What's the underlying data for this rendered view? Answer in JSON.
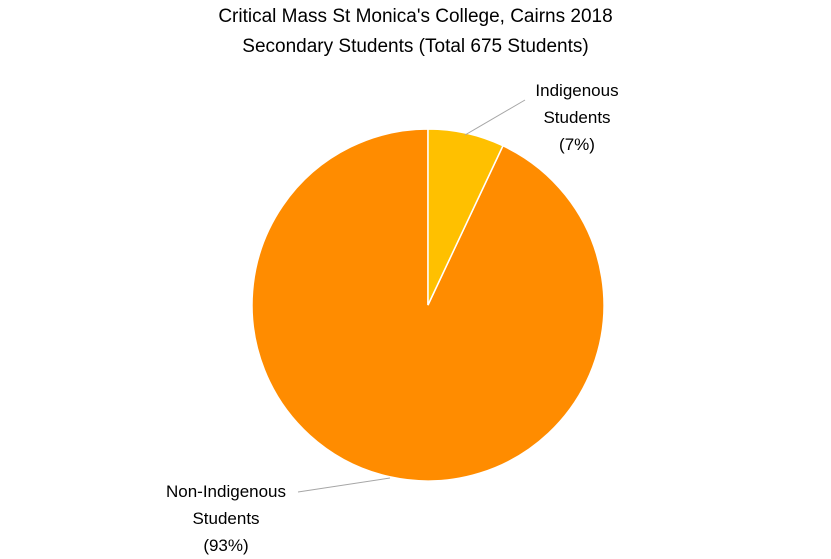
{
  "chart_data": {
    "type": "pie",
    "title": "Critical Mass St Monica's College, Cairns 2018",
    "subtitle": "Secondary Students (Total 675 Students)",
    "categories": [
      "Indigenous Students",
      "Non-Indigenous Students"
    ],
    "values": [
      7,
      93
    ],
    "value_labels": [
      "(7%)",
      "(93%)"
    ],
    "colors": [
      "#FFC000",
      "#FF8C00"
    ]
  }
}
